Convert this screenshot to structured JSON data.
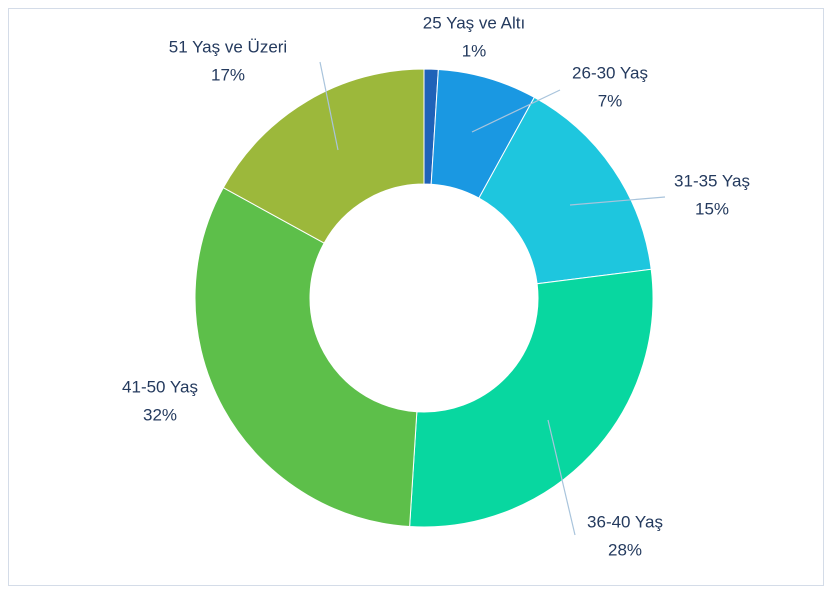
{
  "chart_data": {
    "type": "pie",
    "categories": [
      "25 Yaş ve Altı",
      "26-30 Yaş",
      "31-35 Yaş",
      "36-40 Yaş",
      "41-50 Yaş",
      "51 Yaş ve Üzeri"
    ],
    "values": [
      1,
      7,
      15,
      28,
      32,
      17
    ],
    "value_labels": [
      "1%",
      "7%",
      "15%",
      "28%",
      "32%",
      "17%"
    ],
    "colors": [
      "#1f62b8",
      "#1a98e2",
      "#1ec6de",
      "#08d7a0",
      "#5dbf4a",
      "#9cb83b"
    ]
  }
}
